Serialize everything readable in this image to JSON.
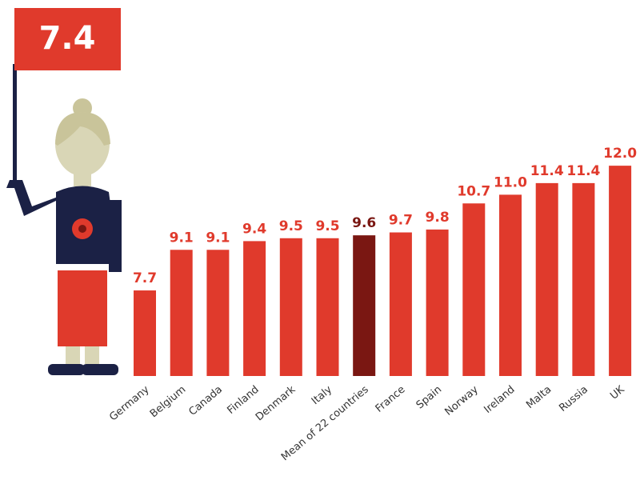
{
  "chart_data": {
    "type": "bar",
    "annotation": "7.4",
    "categories": [
      "Germany",
      "Belgium",
      "Canada",
      "Finland",
      "Denmark",
      "Italy",
      "Mean of 22 countries",
      "France",
      "Spain",
      "Norway",
      "Ireland",
      "Malta",
      "Russia",
      "UK"
    ],
    "values": [
      7.7,
      9.1,
      9.1,
      9.4,
      9.5,
      9.5,
      9.6,
      9.7,
      9.8,
      10.7,
      11.0,
      11.4,
      11.4,
      12.0
    ],
    "value_labels": [
      "7.7",
      "9.1",
      "9.1",
      "9.4",
      "9.5",
      "9.5",
      "9.6",
      "9.7",
      "9.8",
      "10.7",
      "11.0",
      "11.4",
      "11.4",
      "12.0"
    ],
    "colors": [
      "#e03a2c",
      "#e03a2c",
      "#e03a2c",
      "#e03a2c",
      "#e03a2c",
      "#e03a2c",
      "#7a1712",
      "#e03a2c",
      "#e03a2c",
      "#e03a2c",
      "#e03a2c",
      "#e03a2c",
      "#e03a2c",
      "#e03a2c"
    ],
    "ylim": [
      4.75,
      12.5
    ]
  }
}
